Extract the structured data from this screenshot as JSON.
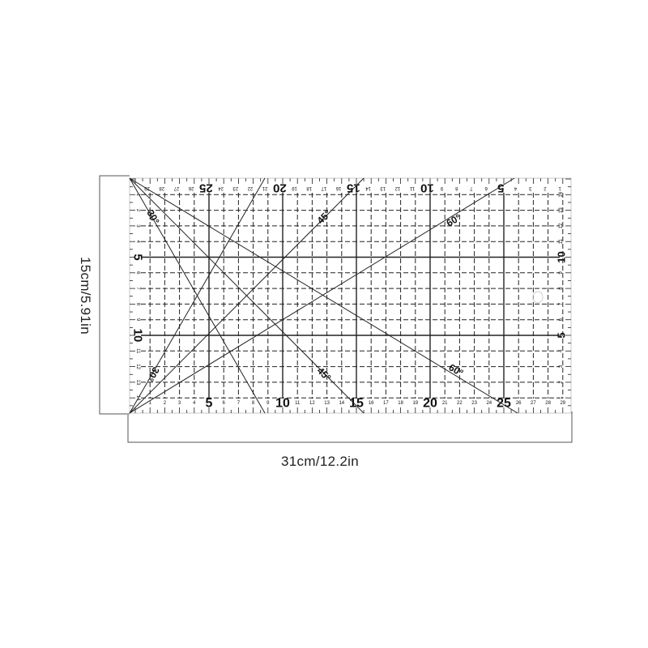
{
  "dimensions": {
    "height_label": "15cm/5.91in",
    "width_label": "31cm/12.2in"
  },
  "ruler": {
    "grid_cm": {
      "width": 30,
      "height": 15
    },
    "bottom_scale": [
      "1",
      "2",
      "3",
      "4",
      "5",
      "6",
      "7",
      "8",
      "9",
      "10",
      "11",
      "12",
      "13",
      "14",
      "15",
      "16",
      "17",
      "18",
      "19",
      "20",
      "21",
      "22",
      "23",
      "24",
      "25",
      "26",
      "27",
      "28",
      "29"
    ],
    "top_scale": [
      "29",
      "28",
      "27",
      "26",
      "25",
      "24",
      "23",
      "22",
      "21",
      "20",
      "19",
      "18",
      "17",
      "16",
      "15",
      "14",
      "13",
      "12",
      "11",
      "10",
      "9",
      "8",
      "7",
      "6",
      "5",
      "4",
      "3",
      "2",
      "1"
    ],
    "left_scale": [
      "1",
      "2",
      "3",
      "4",
      "5",
      "6",
      "7",
      "8",
      "9",
      "10",
      "11",
      "12",
      "13",
      "14"
    ],
    "right_scale": [
      "14",
      "13",
      "12",
      "11",
      "10",
      "9",
      "8",
      "7",
      "6",
      "5",
      "4",
      "3",
      "2",
      "1"
    ],
    "angle_labels": {
      "a30": "30°",
      "a45": "45°",
      "a60": "60°"
    },
    "line_color": "#222222"
  }
}
